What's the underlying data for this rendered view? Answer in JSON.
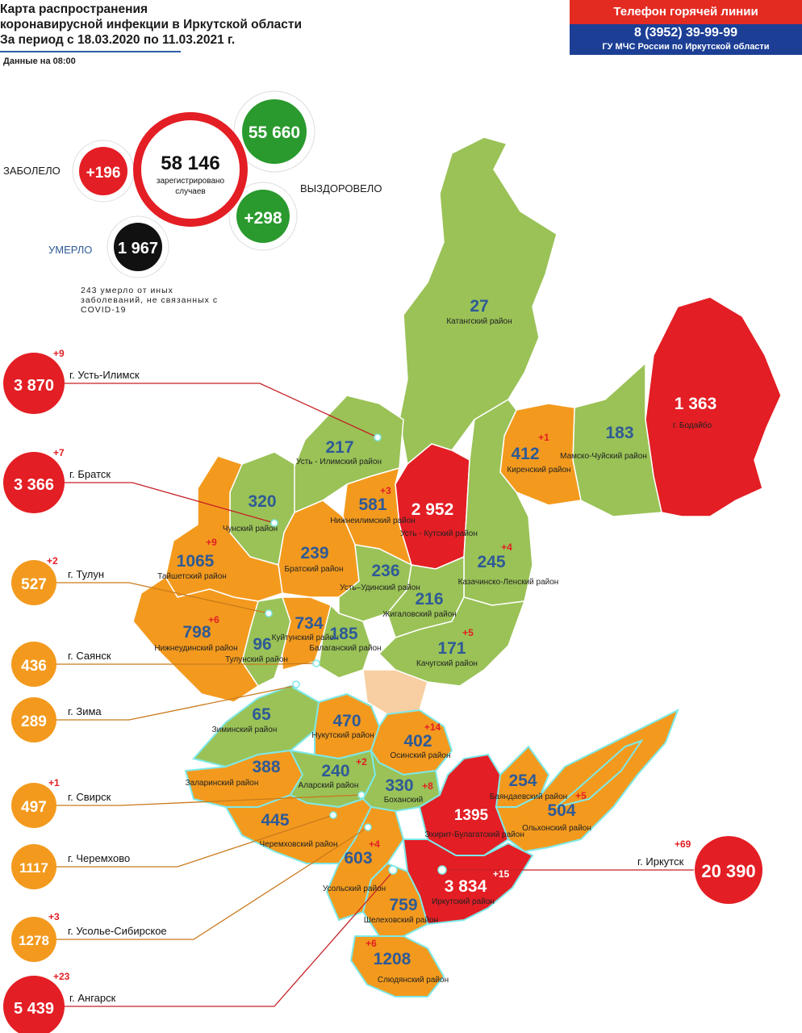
{
  "header": {
    "title_lines": [
      "Карта распространения",
      "коронавирусной инфекции в Иркутской области",
      "За период с 18.03.2020 по 11.03.2021 г."
    ],
    "data_time": "Данные на 08:00"
  },
  "hotline": {
    "title": "Телефон горячей линии",
    "phone": "8 (3952) 39-99-99",
    "org": "ГУ МЧС России по Иркутской области"
  },
  "summary": {
    "total": "58 146",
    "total_caption_1": "зарегистрировано",
    "total_caption_2": "случаев",
    "infected_label": "ЗАБОЛЕЛО",
    "infected_delta": "+196",
    "recovered_total": "55 660",
    "recovered_label": "ВЫЗДОРОВЕЛО",
    "recovered_delta": "+298",
    "died_label": "УМЕРЛО",
    "died_total": "1 967",
    "note": "243 умерло от иных заболеваний, не связанных с COVID-19"
  },
  "colors": {
    "red": "#e31e24",
    "orange": "#f39a1e",
    "green": "#9ac257",
    "blue_text": "#2f5a96",
    "delta_red": "#e31e24"
  },
  "districts": [
    {
      "value": "27",
      "name": "Катангский район",
      "delta": ""
    },
    {
      "value": "1 363",
      "name": "г. Бодайбо",
      "delta": ""
    },
    {
      "value": "183",
      "name": "Мамско-Чуйский район",
      "delta": ""
    },
    {
      "value": "412",
      "name": "Киренский район",
      "delta": "+1"
    },
    {
      "value": "217",
      "name": "Усть - Илимский район",
      "delta": ""
    },
    {
      "value": "581",
      "name": "Нижнеилимский район",
      "delta": "+3"
    },
    {
      "value": "2 952",
      "name": "Усть - Кутский район",
      "delta": ""
    },
    {
      "value": "320",
      "name": "Чунский район",
      "delta": ""
    },
    {
      "value": "239",
      "name": "Братский район",
      "delta": ""
    },
    {
      "value": "1065",
      "name": "Тайшетский район",
      "delta": "+9"
    },
    {
      "value": "236",
      "name": "Усть–Удинский район",
      "delta": ""
    },
    {
      "value": "245",
      "name": "Казачинско-Ленский район",
      "delta": "+4"
    },
    {
      "value": "216",
      "name": "Жигаловский район",
      "delta": ""
    },
    {
      "value": "798",
      "name": "Нижнеудинский район",
      "delta": "+6"
    },
    {
      "value": "734",
      "name": "Куйтунский район",
      "delta": ""
    },
    {
      "value": "96",
      "name": "Тулунский район",
      "delta": ""
    },
    {
      "value": "185",
      "name": "Балаганский район",
      "delta": ""
    },
    {
      "value": "171",
      "name": "Качугский район",
      "delta": "+5"
    },
    {
      "value": "65",
      "name": "Зиминский район",
      "delta": ""
    },
    {
      "value": "470",
      "name": "Нукутский район",
      "delta": ""
    },
    {
      "value": "402",
      "name": "Осинский район",
      "delta": "+14"
    },
    {
      "value": "388",
      "name": "Заларинский район",
      "delta": ""
    },
    {
      "value": "240",
      "name": "Аларский район",
      "delta": "+2"
    },
    {
      "value": "330",
      "name": "Боханский",
      "delta": "+8"
    },
    {
      "value": "254",
      "name": "Баяндаевский район",
      "delta": ""
    },
    {
      "value": "504",
      "name": "Ольхонский район",
      "delta": "+5"
    },
    {
      "value": "1395",
      "name": "Эхирит-Булагатский район",
      "delta": ""
    },
    {
      "value": "445",
      "name": "Черемховский район",
      "delta": ""
    },
    {
      "value": "603",
      "name": "Усольский район",
      "delta": "+4"
    },
    {
      "value": "3 834",
      "name": "Иркутский район",
      "delta": "+15"
    },
    {
      "value": "759",
      "name": "Шелеховский район",
      "delta": ""
    },
    {
      "value": "1208",
      "name": "Слюдянский район",
      "delta": "+6"
    }
  ],
  "cities": [
    {
      "name": "г. Усть-Илимск",
      "value": "3 870",
      "delta": "+9"
    },
    {
      "name": "г. Братск",
      "value": "3 366",
      "delta": "+7"
    },
    {
      "name": "г. Тулун",
      "value": "527",
      "delta": "+2"
    },
    {
      "name": "г. Саянск",
      "value": "436",
      "delta": ""
    },
    {
      "name": "г. Зима",
      "value": "289",
      "delta": ""
    },
    {
      "name": "г. Свирск",
      "value": "497",
      "delta": "+1"
    },
    {
      "name": "г. Черемхово",
      "value": "1117",
      "delta": ""
    },
    {
      "name": "г. Усолье-Сибирское",
      "value": "1278",
      "delta": "+3"
    },
    {
      "name": "г. Ангарск",
      "value": "5 439",
      "delta": "+23"
    },
    {
      "name": "г. Иркутск",
      "value": "20 390",
      "delta": "+69"
    }
  ]
}
